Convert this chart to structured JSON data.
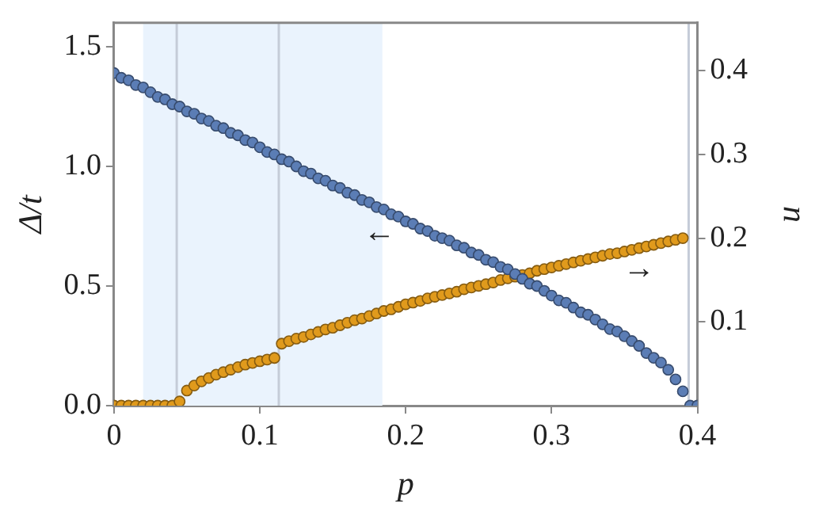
{
  "chart_data": {
    "type": "scatter",
    "xlabel": "p",
    "ylabel": "Δ/t",
    "y2label": "u",
    "x": [
      0,
      0.005,
      0.01,
      0.015,
      0.02,
      0.025,
      0.03,
      0.035,
      0.04,
      0.045,
      0.05,
      0.055,
      0.06,
      0.065,
      0.07,
      0.075,
      0.08,
      0.085,
      0.09,
      0.095,
      0.1,
      0.105,
      0.11,
      0.115,
      0.12,
      0.125,
      0.13,
      0.135,
      0.14,
      0.145,
      0.15,
      0.155,
      0.16,
      0.165,
      0.17,
      0.175,
      0.18,
      0.185,
      0.19,
      0.195,
      0.2,
      0.205,
      0.21,
      0.215,
      0.22,
      0.225,
      0.23,
      0.235,
      0.24,
      0.245,
      0.25,
      0.255,
      0.26,
      0.265,
      0.27,
      0.275,
      0.28,
      0.285,
      0.29,
      0.295,
      0.3,
      0.305,
      0.31,
      0.315,
      0.32,
      0.325,
      0.33,
      0.335,
      0.34,
      0.345,
      0.35,
      0.355,
      0.36,
      0.365,
      0.37,
      0.375,
      0.38,
      0.385,
      0.39,
      0.395,
      0.4
    ],
    "series": [
      {
        "color": "#5b7db5",
        "values": [
          1.39,
          1.37,
          1.36,
          1.34,
          1.33,
          1.31,
          1.29,
          1.28,
          1.26,
          1.25,
          1.23,
          1.22,
          1.2,
          1.19,
          1.17,
          1.16,
          1.14,
          1.13,
          1.11,
          1.1,
          1.08,
          1.06,
          1.05,
          1.03,
          1.02,
          1.0,
          0.98,
          0.97,
          0.95,
          0.94,
          0.92,
          0.91,
          0.89,
          0.88,
          0.86,
          0.85,
          0.83,
          0.82,
          0.8,
          0.79,
          0.77,
          0.76,
          0.74,
          0.73,
          0.71,
          0.7,
          0.69,
          0.67,
          0.66,
          0.64,
          0.63,
          0.61,
          0.6,
          0.58,
          0.57,
          0.55,
          0.53,
          0.51,
          0.5,
          0.48,
          0.46,
          0.44,
          0.43,
          0.41,
          0.39,
          0.38,
          0.36,
          0.34,
          0.32,
          0.31,
          0.29,
          0.27,
          0.25,
          0.22,
          0.2,
          0.18,
          0.15,
          0.11,
          0.06,
          0,
          0
        ]
      },
      {
        "color": "#e09a1c",
        "axis": "y2",
        "values": [
          0,
          0,
          0,
          0,
          0,
          0,
          0,
          0,
          0,
          0.005,
          0.018,
          0.024,
          0.029,
          0.033,
          0.037,
          0.04,
          0.043,
          0.046,
          0.049,
          0.051,
          0.053,
          0.055,
          0.057,
          0.074,
          0.077,
          0.08,
          0.082,
          0.085,
          0.088,
          0.091,
          0.093,
          0.096,
          0.099,
          0.102,
          0.104,
          0.107,
          0.11,
          0.113,
          0.115,
          0.118,
          0.121,
          0.123,
          0.125,
          0.128,
          0.13,
          0.132,
          0.134,
          0.136,
          0.139,
          0.141,
          0.143,
          0.145,
          0.147,
          0.15,
          0.152,
          0.154,
          0.156,
          0.158,
          0.161,
          0.163,
          0.165,
          0.167,
          0.169,
          0.171,
          0.173,
          0.175,
          0.177,
          0.179,
          0.181,
          0.182,
          0.184,
          0.186,
          0.188,
          0.19,
          0.192,
          0.194,
          0.196,
          0.198,
          0.2,
          null,
          null
        ]
      }
    ],
    "xlim": [
      0,
      0.4
    ],
    "xticks": [
      0,
      0.1,
      0.2,
      0.3,
      0.4
    ],
    "ylim": [
      0,
      1.6
    ],
    "yticks": [
      {
        "value": 0,
        "label": "0.0"
      },
      {
        "value": 0.5,
        "label": "0.5"
      },
      {
        "value": 1,
        "label": "1.0"
      },
      {
        "value": 1.5,
        "label": "1.5"
      }
    ],
    "y2lim": [
      0,
      0.457
    ],
    "y2ticks": [
      0.1,
      0.2,
      0.3,
      0.4
    ],
    "ref_lines": [
      {
        "axis": "x",
        "value": 0.043,
        "color": "#c5ccd8"
      },
      {
        "axis": "x",
        "value": 0.113,
        "color": "#c5ccd8"
      },
      {
        "axis": "x",
        "value": 0.394,
        "color": "#c5ccd8"
      }
    ],
    "bands": [
      {
        "axis": "x",
        "from": 0.02,
        "to": 0.184,
        "color": "#eaf3fd"
      }
    ],
    "annotations": [
      "←",
      "→"
    ],
    "marker": "circle",
    "legend": false
  }
}
